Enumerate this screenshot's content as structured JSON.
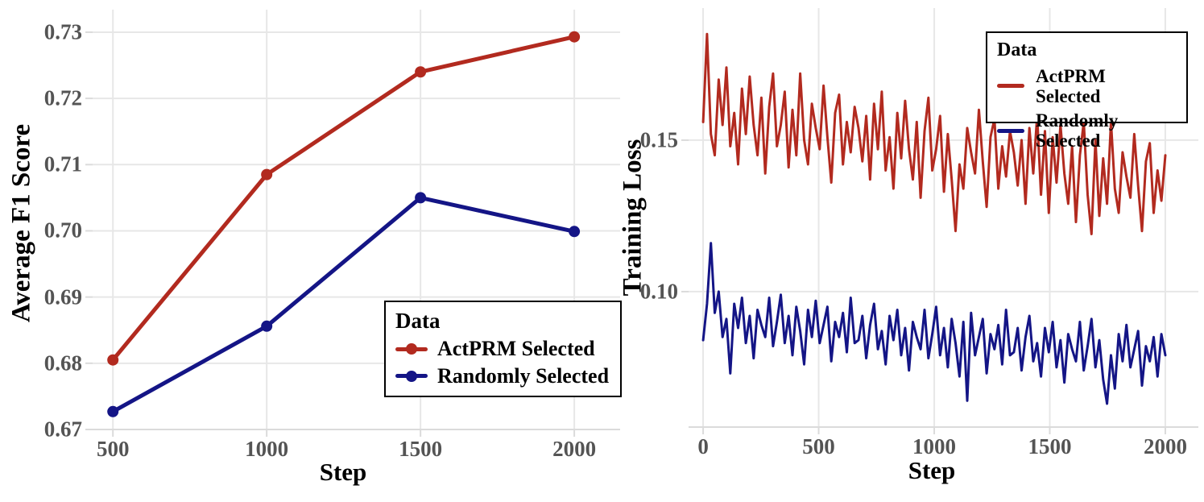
{
  "colors": {
    "background": "#FFFFFF",
    "grid": "#E7E7E7",
    "axis": "#DBDBDB",
    "tick_text": "#545454",
    "title_text": "#000000",
    "actprm_red": "#B22A1F",
    "random_blue": "#141586"
  },
  "chart_data": [
    {
      "type": "line",
      "title": "",
      "xlabel": "Step",
      "ylabel": "Average F1 Score",
      "x": [
        500,
        1000,
        1500,
        2000
      ],
      "x_ticks": [
        500,
        1000,
        1500,
        2000
      ],
      "x_tick_labels": [
        "500",
        "1000",
        "1500",
        "2000"
      ],
      "y_ticks": [
        0.67,
        0.68,
        0.69,
        0.7,
        0.71,
        0.72,
        0.73
      ],
      "y_tick_labels": [
        "0.67",
        "0.68",
        "0.69",
        "0.70",
        "0.71",
        "0.72",
        "0.73"
      ],
      "xlim": [
        434,
        2149
      ],
      "ylim": [
        0.67,
        0.7334
      ],
      "grid": true,
      "legend": {
        "title": "Data",
        "position": "bottom-right"
      },
      "series": [
        {
          "name": "ActPRM Selected",
          "color": "#B22A1F",
          "marker": true,
          "values": [
            0.6805,
            0.7085,
            0.724,
            0.7293
          ]
        },
        {
          "name": "Randomly Selected",
          "color": "#141586",
          "marker": true,
          "values": [
            0.6727,
            0.6856,
            0.705,
            0.6999
          ]
        }
      ]
    },
    {
      "type": "line",
      "title": "",
      "xlabel": "Step",
      "ylabel": "Training Loss",
      "x_start": 0,
      "x_end": 2000,
      "x_ticks": [
        0,
        500,
        1000,
        1500,
        2000
      ],
      "x_tick_labels": [
        "0",
        "500",
        "1000",
        "1500",
        "2000"
      ],
      "y_ticks": [
        0.1,
        0.15
      ],
      "y_tick_labels": [
        "0.10",
        "0.15"
      ],
      "xlim": [
        -63,
        2143
      ],
      "ylim": [
        0.0553,
        0.1936
      ],
      "grid": true,
      "legend": {
        "title": "Data",
        "position": "top-right"
      },
      "series": [
        {
          "name": "ActPRM Selected",
          "color": "#B22A1F",
          "marker": false,
          "values": [
            0.156,
            0.185,
            0.152,
            0.145,
            0.17,
            0.155,
            0.174,
            0.148,
            0.159,
            0.142,
            0.167,
            0.152,
            0.171,
            0.155,
            0.145,
            0.164,
            0.139,
            0.161,
            0.172,
            0.148,
            0.155,
            0.166,
            0.141,
            0.16,
            0.145,
            0.172,
            0.15,
            0.142,
            0.162,
            0.154,
            0.147,
            0.168,
            0.151,
            0.136,
            0.159,
            0.165,
            0.142,
            0.156,
            0.146,
            0.161,
            0.154,
            0.143,
            0.158,
            0.137,
            0.162,
            0.147,
            0.166,
            0.14,
            0.151,
            0.134,
            0.159,
            0.144,
            0.163,
            0.147,
            0.137,
            0.156,
            0.131,
            0.153,
            0.164,
            0.14,
            0.147,
            0.158,
            0.133,
            0.152,
            0.137,
            0.12,
            0.142,
            0.134,
            0.154,
            0.146,
            0.139,
            0.16,
            0.143,
            0.128,
            0.151,
            0.157,
            0.134,
            0.148,
            0.138,
            0.153,
            0.146,
            0.135,
            0.15,
            0.129,
            0.154,
            0.139,
            0.158,
            0.132,
            0.153,
            0.126,
            0.151,
            0.136,
            0.155,
            0.139,
            0.129,
            0.148,
            0.123,
            0.145,
            0.156,
            0.132,
            0.119,
            0.15,
            0.125,
            0.144,
            0.129,
            0.156,
            0.134,
            0.126,
            0.146,
            0.138,
            0.131,
            0.152,
            0.135,
            0.12,
            0.143,
            0.149,
            0.126,
            0.14,
            0.13,
            0.145
          ]
        },
        {
          "name": "Randomly Selected",
          "color": "#141586",
          "marker": false,
          "values": [
            0.084,
            0.096,
            0.116,
            0.093,
            0.1,
            0.085,
            0.091,
            0.073,
            0.096,
            0.088,
            0.098,
            0.083,
            0.092,
            0.078,
            0.094,
            0.089,
            0.085,
            0.098,
            0.082,
            0.09,
            0.099,
            0.083,
            0.092,
            0.079,
            0.095,
            0.087,
            0.076,
            0.094,
            0.085,
            0.097,
            0.083,
            0.089,
            0.095,
            0.077,
            0.09,
            0.085,
            0.093,
            0.08,
            0.098,
            0.083,
            0.084,
            0.092,
            0.078,
            0.089,
            0.096,
            0.081,
            0.087,
            0.076,
            0.092,
            0.084,
            0.094,
            0.079,
            0.088,
            0.074,
            0.09,
            0.085,
            0.081,
            0.094,
            0.078,
            0.086,
            0.095,
            0.079,
            0.088,
            0.075,
            0.091,
            0.083,
            0.072,
            0.09,
            0.064,
            0.093,
            0.079,
            0.085,
            0.091,
            0.073,
            0.086,
            0.081,
            0.089,
            0.076,
            0.094,
            0.079,
            0.08,
            0.088,
            0.074,
            0.085,
            0.092,
            0.077,
            0.083,
            0.072,
            0.088,
            0.08,
            0.09,
            0.075,
            0.084,
            0.07,
            0.086,
            0.081,
            0.077,
            0.09,
            0.074,
            0.082,
            0.091,
            0.075,
            0.084,
            0.071,
            0.063,
            0.079,
            0.068,
            0.086,
            0.077,
            0.089,
            0.075,
            0.081,
            0.087,
            0.069,
            0.082,
            0.077,
            0.085,
            0.072,
            0.086,
            0.079
          ]
        }
      ]
    }
  ]
}
